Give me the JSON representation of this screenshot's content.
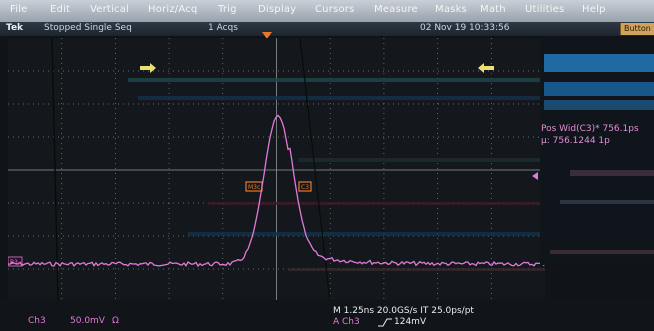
{
  "menu": {
    "file": "File",
    "edit": "Edit",
    "vertical": "Vertical",
    "horiz": "Horiz/Acq",
    "trig": "Trig",
    "display": "Display",
    "cursors": "Cursors",
    "measure": "Measure",
    "masks": "Masks",
    "math": "Math",
    "utilities": "Utilities",
    "help": "Help"
  },
  "status": {
    "brand": "Tek",
    "mode": "Stopped  Single Seq",
    "acqs": "1 Acqs",
    "datetime": "02 Nov 19 10:33:56",
    "button": "Button"
  },
  "measurements": {
    "pos_width": "Pos Wid(C3)* 756.1ps",
    "mu": "µ: 756.1244 1p"
  },
  "markers": {
    "left_cursor": "M3c",
    "right_cursor": "C3",
    "channel": "B3"
  },
  "bottom": {
    "ch3_label": "Ch3",
    "ch3_scale": "50.0mV",
    "ch3_coupling": "Ω",
    "timebase": "M 1.25ns 20.0GS/s   IT 25.0ps/pt",
    "trigger": "A  Ch3",
    "trigger_level": "124mV"
  },
  "colors": {
    "trace": "#e07ad8",
    "grid": "#7c8790",
    "menu_text": "#f4f6f8",
    "accent_yellow": "#e8e070",
    "marker_orange": "#e8772a"
  }
}
